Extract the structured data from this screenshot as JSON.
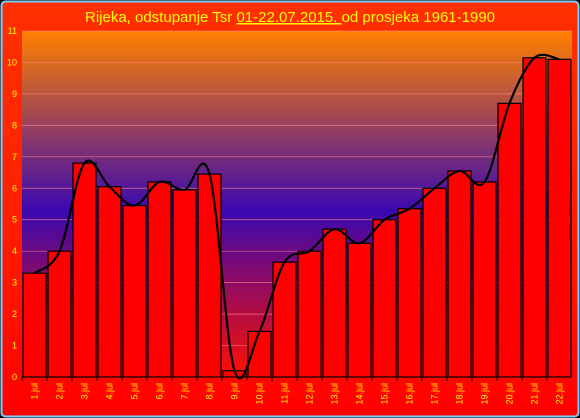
{
  "chart_data": {
    "type": "bar",
    "title_prefix": "Rijeka, odstupanje Tsr ",
    "title_underlined": "01-22.07.2015. ",
    "title_suffix": " od prosjeka 1961-1990",
    "xlabel": "",
    "ylabel": "",
    "ylim": [
      0,
      11
    ],
    "yticks": [
      0,
      1,
      2,
      3,
      4,
      5,
      6,
      7,
      8,
      9,
      10,
      11
    ],
    "grid": true,
    "legend": "none",
    "categories": [
      "1.jul",
      "2.jul",
      "3.jul",
      "4.jul",
      "5.jul",
      "6.jul",
      "7.jul",
      "8.jul",
      "9.jul",
      "10.jul",
      "11.jul",
      "12.jul",
      "13.jul",
      "14.jul",
      "15.jul",
      "16.jul",
      "17.jul",
      "18.jul",
      "19.jul",
      "20.jul",
      "21.jul",
      "22.jul"
    ],
    "values": [
      3.3,
      4.0,
      6.8,
      6.05,
      5.45,
      6.2,
      5.95,
      6.45,
      0.2,
      1.45,
      3.65,
      4.0,
      4.7,
      4.25,
      5.0,
      5.35,
      6.0,
      6.55,
      6.2,
      8.7,
      10.15,
      10.1
    ],
    "trendline": "smoothed",
    "colors": {
      "bar_fill": "#ff0000",
      "bar_stroke": "#000000",
      "line": "#000000",
      "gradient_top": "#ff8000",
      "gradient_middle": "#3a08b0",
      "gradient_bottom": "#ff1000",
      "title_background": "#ff3000",
      "text": "#ffff00",
      "grid": "#ff8888"
    }
  }
}
